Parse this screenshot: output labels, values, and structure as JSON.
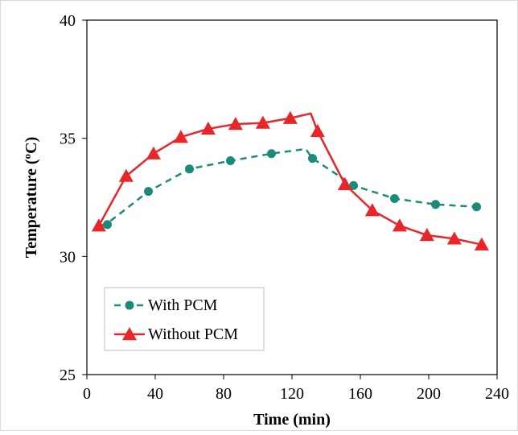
{
  "chart_data": {
    "type": "line",
    "title": "",
    "xlabel": "Time (min)",
    "ylabel": "Temperature (ºC)",
    "xlim": [
      0,
      240
    ],
    "ylim": [
      25,
      40
    ],
    "xticks": [
      0,
      40,
      80,
      120,
      160,
      200,
      240
    ],
    "yticks": [
      25,
      30,
      35,
      40
    ],
    "grid": false,
    "legend_position": "bottom-left",
    "series": [
      {
        "name": "With PCM",
        "color": "#1a8a7a",
        "line_style": "dashed",
        "marker": "circle",
        "line_x": [
          8,
          12,
          36,
          60,
          84,
          108,
          128,
          132,
          156,
          180,
          204,
          228
        ],
        "line_y": [
          31.3,
          31.4,
          32.75,
          33.7,
          34.05,
          34.35,
          34.55,
          34.15,
          33.0,
          32.45,
          32.2,
          32.1
        ],
        "marker_x": [
          12,
          36,
          60,
          84,
          108,
          132,
          156,
          180,
          204,
          228
        ],
        "marker_y": [
          31.35,
          32.75,
          33.7,
          34.05,
          34.35,
          34.15,
          33.0,
          32.45,
          32.2,
          32.1
        ]
      },
      {
        "name": "Without PCM",
        "color": "#e8262a",
        "line_style": "solid",
        "marker": "triangle",
        "line_x": [
          7,
          23,
          39,
          55,
          71,
          87,
          103,
          119,
          131,
          135,
          151,
          167,
          183,
          199,
          215,
          231
        ],
        "line_y": [
          31.3,
          33.4,
          34.35,
          35.05,
          35.4,
          35.6,
          35.65,
          35.85,
          36.05,
          35.3,
          33.05,
          31.95,
          31.3,
          30.9,
          30.75,
          30.5
        ],
        "marker_x": [
          7,
          23,
          39,
          55,
          71,
          87,
          103,
          119,
          135,
          151,
          167,
          183,
          199,
          215,
          231
        ],
        "marker_y": [
          31.3,
          33.4,
          34.35,
          35.05,
          35.4,
          35.6,
          35.65,
          35.85,
          35.3,
          33.05,
          31.95,
          31.3,
          30.9,
          30.75,
          30.5
        ]
      }
    ]
  }
}
